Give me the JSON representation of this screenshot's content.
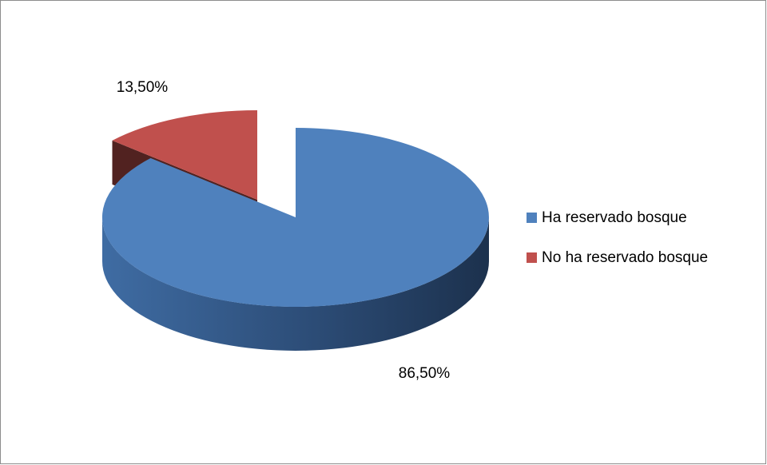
{
  "chart_data": {
    "type": "pie",
    "categories": [
      "Ha reservado bosque",
      "No ha reservado bosque"
    ],
    "values": [
      86.5,
      13.5
    ],
    "value_labels": [
      "86,50%",
      "13,50%"
    ],
    "colors": [
      "#4f81bd",
      "#c0504d"
    ],
    "legend": "right"
  }
}
